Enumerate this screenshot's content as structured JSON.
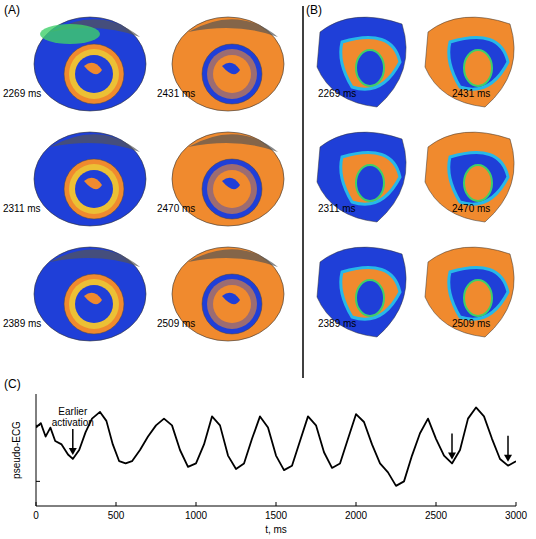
{
  "panels": [
    {
      "label": "(A)",
      "frames": [
        "2269 ms",
        "2431 ms",
        "2311 ms",
        "2470 ms",
        "2389 ms",
        "2509 ms"
      ]
    },
    {
      "label": "(B)",
      "frames": [
        "2269 ms",
        "2431 ms",
        "2311 ms",
        "2470 ms",
        "2389 ms",
        "2509 ms"
      ]
    }
  ],
  "chart_data": {
    "type": "line",
    "panel_label": "(C)",
    "x_label": "t, ms",
    "y_label": "pseudo-ECG",
    "xlim": [
      0,
      3000
    ],
    "xticks": [
      0,
      500,
      1000,
      1500,
      2000,
      2500,
      3000
    ],
    "ylim": [
      0,
      1
    ],
    "yticks": [
      0.22,
      0.72
    ],
    "tick_labels": "x",
    "x": [
      0,
      30,
      60,
      90,
      120,
      160,
      200,
      230,
      270,
      310,
      350,
      400,
      440,
      480,
      520,
      560,
      600,
      650,
      700,
      750,
      800,
      850,
      900,
      950,
      1000,
      1050,
      1100,
      1150,
      1200,
      1250,
      1300,
      1350,
      1400,
      1450,
      1500,
      1550,
      1600,
      1650,
      1700,
      1750,
      1800,
      1850,
      1900,
      1950,
      2000,
      2050,
      2100,
      2150,
      2200,
      2250,
      2300,
      2350,
      2400,
      2450,
      2500,
      2550,
      2600,
      2650,
      2700,
      2750,
      2800,
      2850,
      2900,
      2950,
      3000
    ],
    "series": [
      {
        "name": "pseudo-ECG",
        "color": "#000000",
        "values": [
          0.7,
          0.74,
          0.62,
          0.7,
          0.58,
          0.55,
          0.46,
          0.42,
          0.5,
          0.66,
          0.78,
          0.84,
          0.76,
          0.55,
          0.4,
          0.38,
          0.4,
          0.5,
          0.62,
          0.72,
          0.78,
          0.72,
          0.5,
          0.35,
          0.38,
          0.55,
          0.8,
          0.72,
          0.45,
          0.33,
          0.38,
          0.6,
          0.8,
          0.7,
          0.45,
          0.32,
          0.36,
          0.58,
          0.8,
          0.72,
          0.48,
          0.34,
          0.38,
          0.6,
          0.82,
          0.75,
          0.55,
          0.38,
          0.3,
          0.18,
          0.22,
          0.45,
          0.65,
          0.78,
          0.6,
          0.45,
          0.38,
          0.5,
          0.78,
          0.88,
          0.8,
          0.6,
          0.42,
          0.36,
          0.4
        ]
      }
    ],
    "arrows": [
      {
        "x": 230,
        "y": 0.42,
        "text": "Earlier activation"
      },
      {
        "x": 2600,
        "y": 0.38
      },
      {
        "x": 2950,
        "y": 0.36
      }
    ]
  }
}
